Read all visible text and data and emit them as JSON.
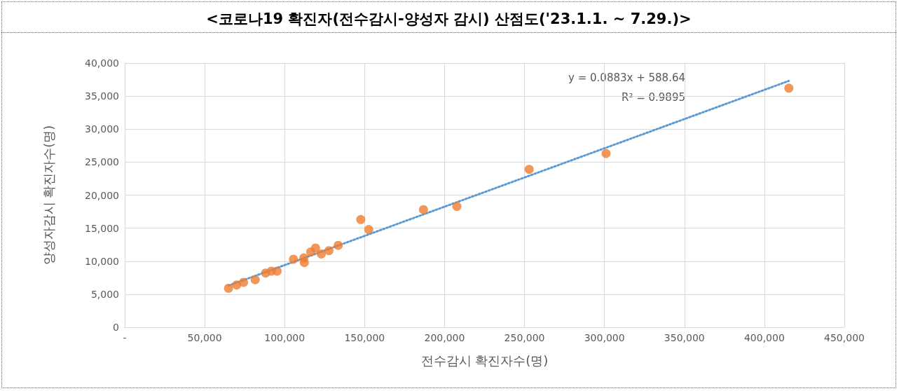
{
  "chart_data": {
    "type": "scatter",
    "title": "<코로나19 확진자(전수감시-양성자 감시) 산점도('23.1.1. ~ 7.29.)>",
    "xlabel": "전수감시 확진자수(명)",
    "ylabel": "양성자감시 확진자수(명)",
    "series": [
      {
        "type": "scatter",
        "color": "#ed7d31",
        "marker": "circle",
        "x": [
          64900,
          70000,
          74300,
          81600,
          88100,
          91700,
          95300,
          105500,
          112000,
          112300,
          116300,
          119300,
          122900,
          127700,
          133500,
          147600,
          152600,
          186800,
          207700,
          252900,
          301000,
          415300
        ],
        "values": [
          5900,
          6400,
          6800,
          7200,
          8200,
          8500,
          8500,
          10300,
          10500,
          9800,
          11400,
          12000,
          11100,
          11600,
          12400,
          16300,
          14800,
          17800,
          18300,
          23900,
          26300,
          36200
        ]
      },
      {
        "type": "line",
        "color": "#5b9bd5",
        "line_style": "dotted",
        "marker": "none",
        "x": [
          64900,
          415300
        ],
        "values": [
          6300,
          37300
        ]
      }
    ],
    "annotations": [
      "y = 0.0883x + 588.64",
      "R² = 0.9895"
    ],
    "xlim": [
      0,
      450000
    ],
    "xticks": [
      {
        "value": 0,
        "label": "-"
      },
      {
        "value": 50000,
        "label": "50,000"
      },
      {
        "value": 100000,
        "label": "100,000"
      },
      {
        "value": 150000,
        "label": "150,000"
      },
      {
        "value": 200000,
        "label": "200,000"
      },
      {
        "value": 250000,
        "label": "250,000"
      },
      {
        "value": 300000,
        "label": "300,000"
      },
      {
        "value": 350000,
        "label": "350,000"
      },
      {
        "value": 400000,
        "label": "400,000"
      },
      {
        "value": 450000,
        "label": "450,000"
      }
    ],
    "ylim": [
      0,
      40000
    ],
    "yticks": [
      0,
      {
        "value": 5000,
        "label": "5,000"
      },
      {
        "value": 10000,
        "label": "10,000"
      },
      {
        "value": 15000,
        "label": "15,000"
      },
      {
        "value": 20000,
        "label": "20,000"
      },
      {
        "value": 25000,
        "label": "25,000"
      },
      {
        "value": 30000,
        "label": "30,000"
      },
      {
        "value": 35000,
        "label": "35,000"
      },
      {
        "value": 40000,
        "label": "40,000"
      }
    ],
    "grid": true
  }
}
